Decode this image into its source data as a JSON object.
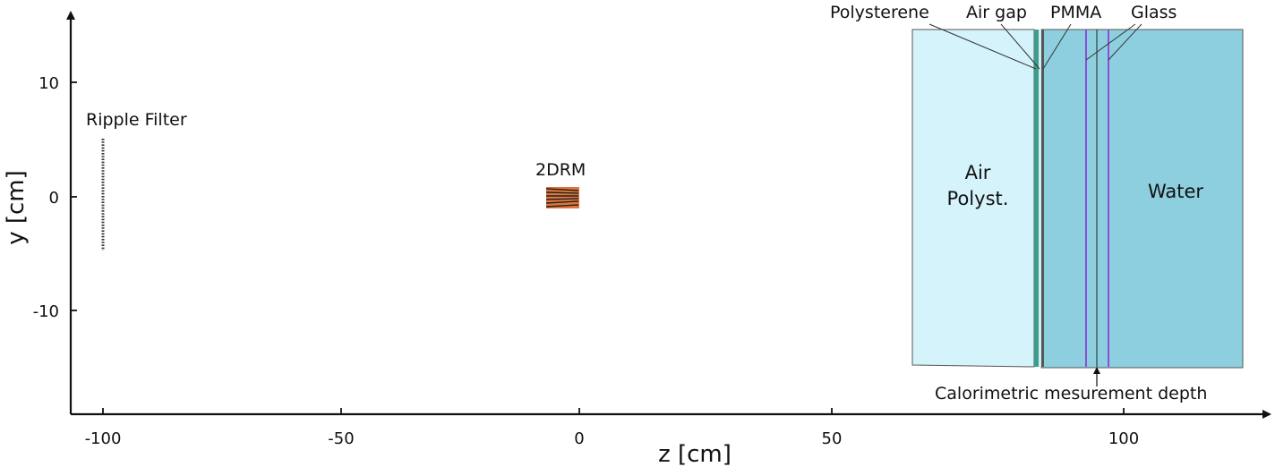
{
  "axes": {
    "xlabel": "z [cm]",
    "ylabel": "y [cm]",
    "xticks": [
      -100,
      -50,
      0,
      50,
      100
    ],
    "yticks": [
      10,
      0,
      -10
    ]
  },
  "labels": {
    "ripple_filter": "Ripple Filter",
    "drm": "2DRM",
    "polysterene": "Polysterene",
    "air_gap": "Air gap",
    "pmma": "PMMA",
    "glass": "Glass",
    "air_line1": "Air",
    "air_line2": "Polyst.",
    "water": "Water",
    "calorimetric": "Calorimetric mesurement depth"
  },
  "colors": {
    "air_region": "#d5f3fb",
    "water_region": "#8dcfdf",
    "polysterene_layer": "#3d9c8a",
    "glass_layer": "#8a4fd6",
    "drm": "#e0763a",
    "ripple_filter": "#333333"
  }
}
